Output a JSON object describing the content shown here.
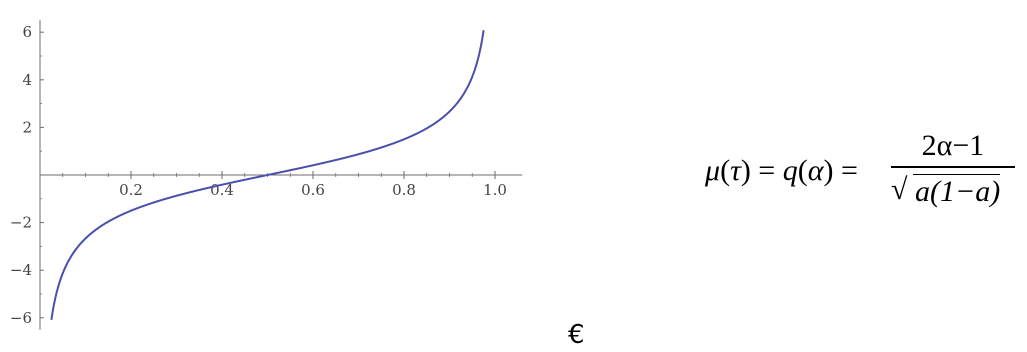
{
  "chart_data": {
    "type": "line",
    "function": "(2x-1)/sqrt(x(1-x))",
    "x_range": [
      0.025,
      0.975
    ],
    "xlim": [
      0.0,
      1.0
    ],
    "ylim": [
      -6.5,
      6.5
    ],
    "x_ticks": [
      0.2,
      0.4,
      0.6,
      0.8,
      1.0
    ],
    "x_tick_labels": [
      "0.2",
      "0.4",
      "0.6",
      "0.8",
      "1.0"
    ],
    "y_ticks": [
      -6,
      -4,
      -2,
      2,
      4,
      6
    ],
    "y_tick_labels": [
      "-6",
      "-4",
      "-2",
      "2",
      "4",
      "6"
    ],
    "samples": [
      {
        "x": 0.025,
        "y": -6.0
      },
      {
        "x": 0.1,
        "y": -2.67
      },
      {
        "x": 0.2,
        "y": -1.5
      },
      {
        "x": 0.3,
        "y": -0.87
      },
      {
        "x": 0.4,
        "y": -0.41
      },
      {
        "x": 0.5,
        "y": 0.0
      },
      {
        "x": 0.6,
        "y": 0.41
      },
      {
        "x": 0.7,
        "y": 0.87
      },
      {
        "x": 0.8,
        "y": 1.5
      },
      {
        "x": 0.9,
        "y": 2.67
      },
      {
        "x": 0.975,
        "y": 6.0
      }
    ],
    "line_color": "#4b4fad",
    "axis_color": "#6e6e6e",
    "grid": false,
    "title": "",
    "xlabel": "",
    "ylabel": ""
  },
  "formula": {
    "lhs_mu": "μ",
    "lhs_tau": "τ",
    "mid_q": "q",
    "mid_alpha": "α",
    "numerator": "2α−1",
    "radicand": "a(1−a)"
  },
  "symbols": {
    "euro": "€"
  }
}
